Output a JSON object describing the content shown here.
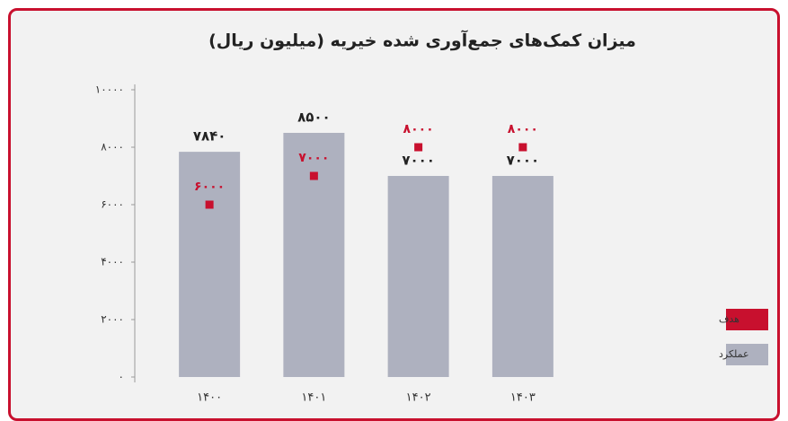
{
  "chart_data": {
    "type": "bar",
    "title": "میزان کمک‌های جمع‌آوری شده خیریه (میلیون ریال)",
    "categories": [
      "۱۴۰۰",
      "۱۴۰۱",
      "۱۴۰۲",
      "۱۴۰۳"
    ],
    "series": [
      {
        "name": "عملکرد",
        "color": "#aeb1bf",
        "type": "bar",
        "values": [
          7840,
          8500,
          7000,
          7000
        ],
        "value_labels": [
          "۷۸۴۰",
          "۸۵۰۰",
          "۷۰۰۰",
          "۷۰۰۰"
        ]
      },
      {
        "name": "هدف",
        "color": "#c8102e",
        "type": "scatter",
        "values": [
          6000,
          7000,
          8000,
          8000
        ],
        "value_labels": [
          "۶۰۰۰",
          "۷۰۰۰",
          "۸۰۰۰",
          "۸۰۰۰"
        ]
      }
    ],
    "ylim": [
      0,
      10000
    ],
    "yticks": [
      {
        "value": 0,
        "label": "۰"
      },
      {
        "value": 2000,
        "label": "۲۰۰۰"
      },
      {
        "value": 4000,
        "label": "۴۰۰۰"
      },
      {
        "value": 6000,
        "label": "۶۰۰۰"
      },
      {
        "value": 8000,
        "label": "۸۰۰۰"
      },
      {
        "value": 10000,
        "label": "۱۰۰۰۰"
      }
    ],
    "legend": "right"
  }
}
